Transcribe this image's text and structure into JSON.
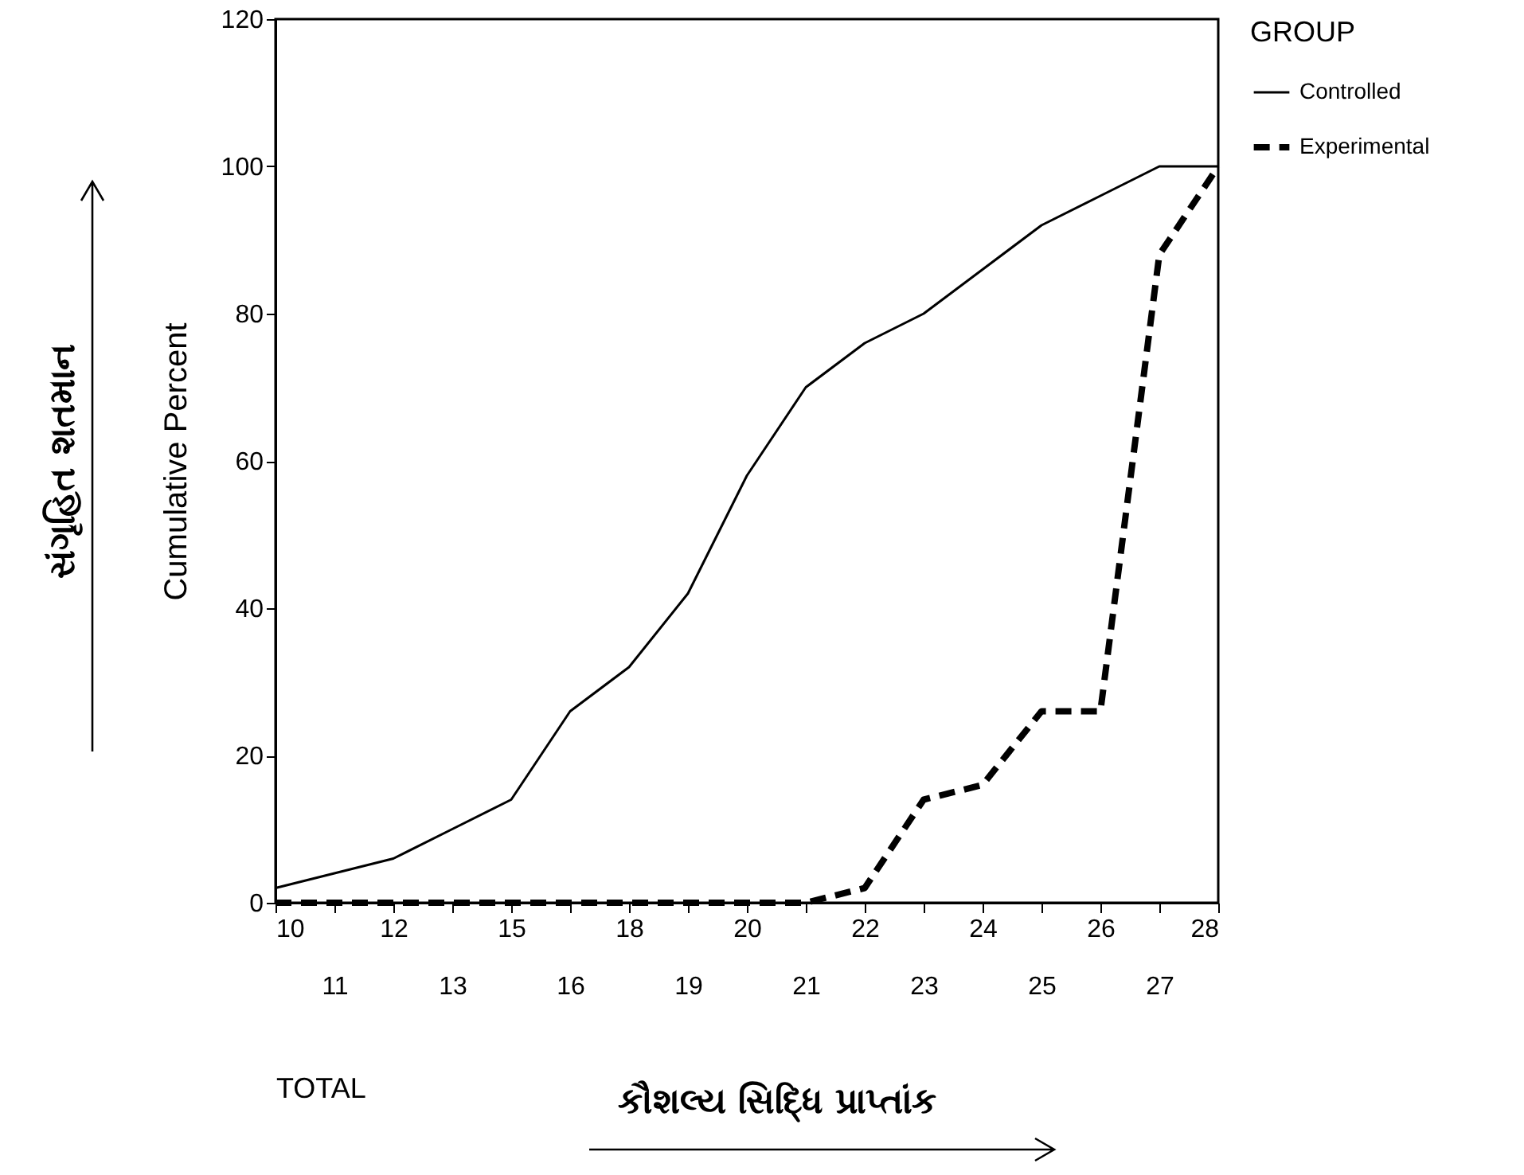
{
  "chart_data": {
    "type": "line",
    "xlabel": "TOTAL",
    "ylabel": "Cumulative Percent",
    "legend_title": "GROUP",
    "legend": "right",
    "categories": [
      "10",
      "11",
      "12",
      "13",
      "15",
      "16",
      "18",
      "19",
      "20",
      "21",
      "22",
      "23",
      "24",
      "25",
      "26",
      "27",
      "28"
    ],
    "ylim": [
      0,
      120
    ],
    "yticks": [
      0,
      20,
      40,
      60,
      80,
      100,
      120
    ],
    "grid": false,
    "marker": "none",
    "series": [
      {
        "name": "Controlled",
        "color": "#000000",
        "line_style": "solid",
        "values": [
          2,
          4,
          6,
          10,
          14,
          26,
          32,
          42,
          58,
          70,
          76,
          80,
          86,
          92,
          96,
          100,
          100
        ]
      },
      {
        "name": "Experimental",
        "color": "#000000",
        "line_style": "dashed",
        "values": [
          0,
          0,
          0,
          0,
          0,
          0,
          0,
          0,
          0,
          0,
          2,
          14,
          16,
          26,
          26,
          88,
          100
        ]
      }
    ],
    "annotations": [
      "સંગૃહિત શતમાન",
      "કૌશલ્ય સિદ્ધિ પ્રાપ્તાંક"
    ]
  }
}
